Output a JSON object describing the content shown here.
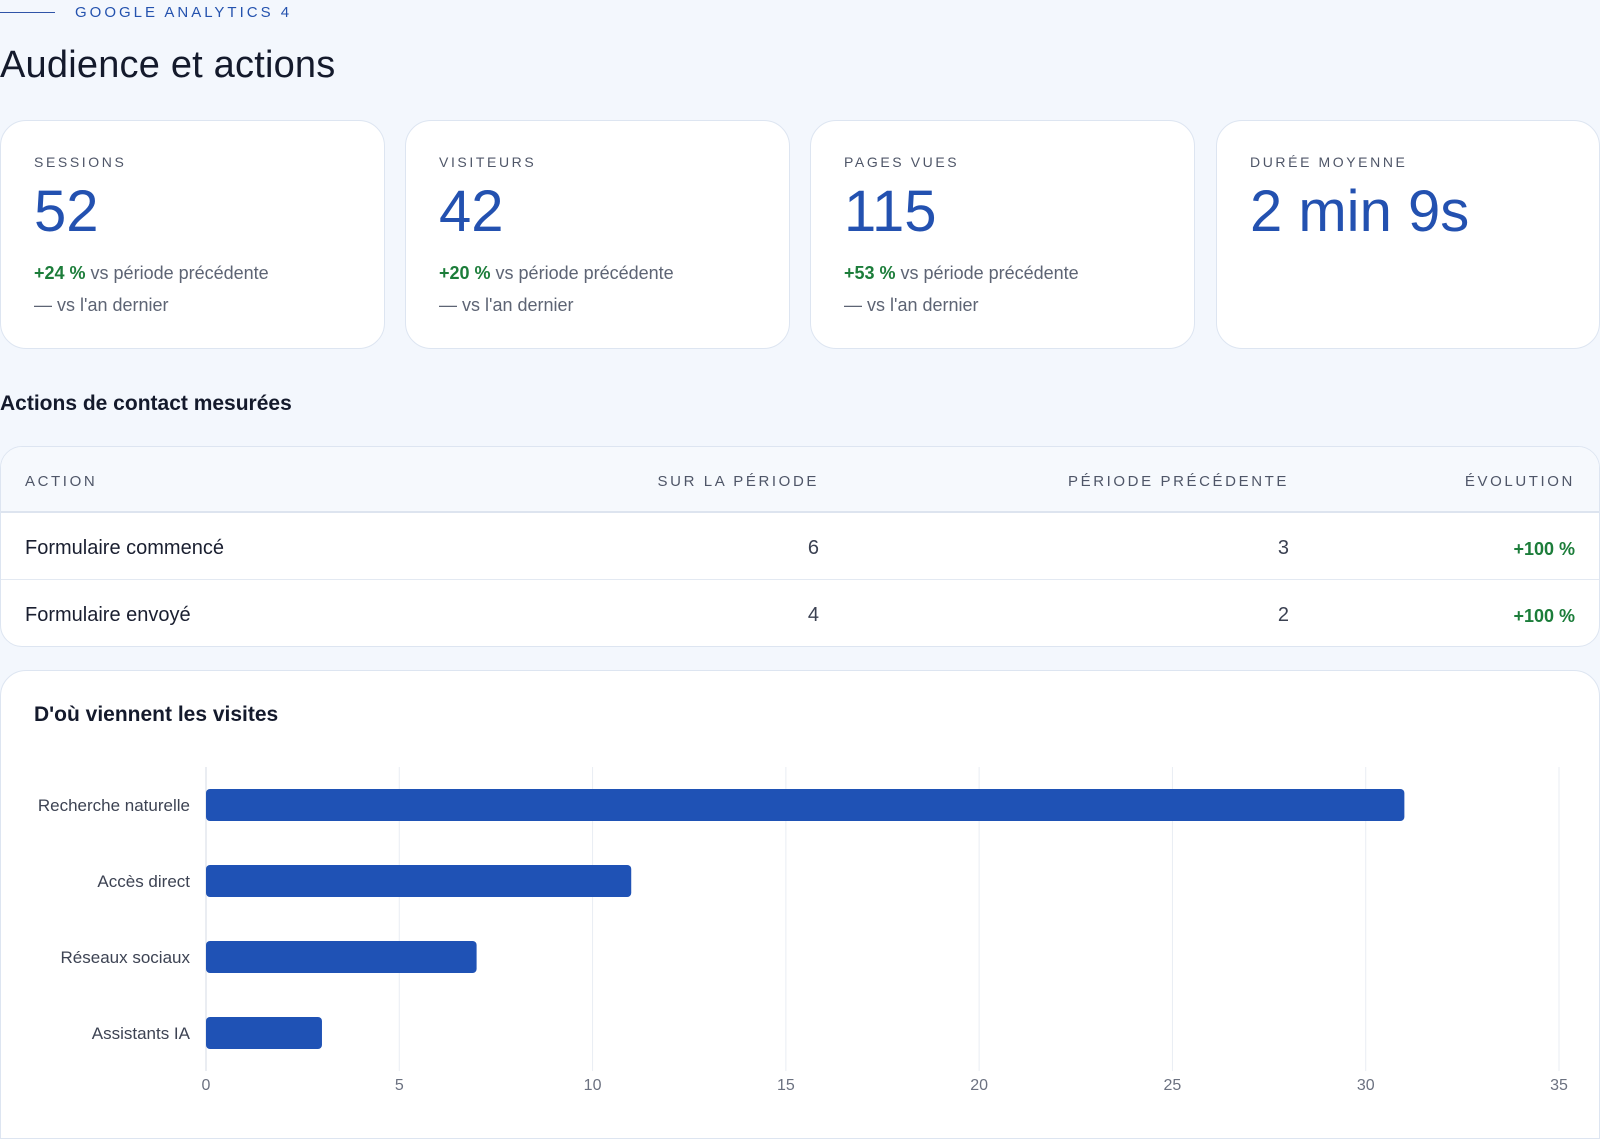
{
  "header": {
    "eyebrow": "GOOGLE ANALYTICS 4",
    "title": "Audience et actions"
  },
  "kpis": [
    {
      "label": "SESSIONS",
      "value": "52",
      "delta": "+24 %",
      "cmp_text": " vs période précédente",
      "year_text": "— vs l'an dernier"
    },
    {
      "label": "VISITEURS",
      "value": "42",
      "delta": "+20 %",
      "cmp_text": " vs période précédente",
      "year_text": "— vs l'an dernier"
    },
    {
      "label": "PAGES VUES",
      "value": "115",
      "delta": "+53 %",
      "cmp_text": " vs période précédente",
      "year_text": "— vs l'an dernier"
    },
    {
      "label": "DURÉE MOYENNE",
      "value": "2 min 9s"
    }
  ],
  "actions": {
    "title": "Actions de contact mesurées",
    "headers": [
      "ACTION",
      "SUR LA PÉRIODE",
      "PÉRIODE PRÉCÉDENTE",
      "ÉVOLUTION"
    ],
    "rows": [
      {
        "action": "Formulaire commencé",
        "current": "6",
        "previous": "3",
        "evolution": "+100 %"
      },
      {
        "action": "Formulaire envoyé",
        "current": "4",
        "previous": "2",
        "evolution": "+100 %"
      }
    ]
  },
  "colors": {
    "accent": "#2351b0",
    "bar": "#1f52b5",
    "positive": "#1c7d3a"
  },
  "chart_data": {
    "type": "bar",
    "orientation": "horizontal",
    "title": "D'où viennent les visites",
    "categories": [
      "Recherche naturelle",
      "Accès direct",
      "Réseaux sociaux",
      "Assistants IA"
    ],
    "values": [
      31,
      11,
      7,
      3
    ],
    "xlim": [
      0,
      35
    ],
    "xticks": [
      0,
      5,
      10,
      15,
      20,
      25,
      30,
      35
    ],
    "grid": true,
    "legend": "none"
  }
}
